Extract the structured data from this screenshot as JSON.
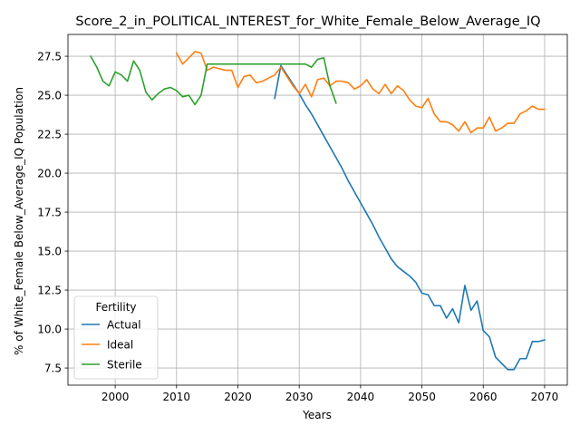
{
  "chart_data": {
    "type": "line",
    "title": "Score_2_in_POLITICAL_INTEREST_for_White_Female_Below_Average_IQ",
    "xlabel": "Years",
    "ylabel": "% of White_Female Below_Average_IQ Population",
    "xlim": [
      1992.3,
      2073.7
    ],
    "ylim": [
      6.4,
      28.9
    ],
    "xticks": [
      2000,
      2010,
      2020,
      2030,
      2040,
      2050,
      2060,
      2070
    ],
    "yticks": [
      7.5,
      10.0,
      12.5,
      15.0,
      17.5,
      20.0,
      22.5,
      25.0,
      27.5
    ],
    "grid": true,
    "legend": {
      "title": "Fertility",
      "position": "lower-left"
    },
    "series": [
      {
        "name": "Actual",
        "color": "#1f77b4",
        "points": [
          [
            2026,
            24.8
          ],
          [
            2027,
            26.9
          ],
          [
            2028,
            26.3
          ],
          [
            2029,
            25.7
          ],
          [
            2030,
            25.1
          ],
          [
            2031,
            24.4
          ],
          [
            2032,
            23.8
          ],
          [
            2033,
            23.1
          ],
          [
            2034,
            22.4
          ],
          [
            2035,
            21.7
          ],
          [
            2036,
            21.0
          ],
          [
            2037,
            20.3
          ],
          [
            2038,
            19.5
          ],
          [
            2039,
            18.8
          ],
          [
            2040,
            18.1
          ],
          [
            2041,
            17.4
          ],
          [
            2042,
            16.7
          ],
          [
            2043,
            15.9
          ],
          [
            2044,
            15.2
          ],
          [
            2045,
            14.5
          ],
          [
            2046,
            14.0
          ],
          [
            2047,
            13.7
          ],
          [
            2048,
            13.4
          ],
          [
            2049,
            13.0
          ],
          [
            2050,
            12.3
          ],
          [
            2051,
            12.2
          ],
          [
            2052,
            11.5
          ],
          [
            2053,
            11.5
          ],
          [
            2054,
            10.7
          ],
          [
            2055,
            11.3
          ],
          [
            2056,
            10.4
          ],
          [
            2057,
            12.8
          ],
          [
            2058,
            11.2
          ],
          [
            2059,
            11.8
          ],
          [
            2060,
            9.9
          ],
          [
            2061,
            9.5
          ],
          [
            2062,
            8.2
          ],
          [
            2063,
            7.8
          ],
          [
            2064,
            7.4
          ],
          [
            2065,
            7.4
          ],
          [
            2066,
            8.1
          ],
          [
            2067,
            8.1
          ],
          [
            2068,
            9.2
          ],
          [
            2069,
            9.2
          ],
          [
            2070,
            9.3
          ]
        ]
      },
      {
        "name": "Ideal",
        "color": "#ff7f0e",
        "points": [
          [
            2010,
            27.7
          ],
          [
            2011,
            27.0
          ],
          [
            2012,
            27.4
          ],
          [
            2013,
            27.8
          ],
          [
            2014,
            27.7
          ],
          [
            2015,
            26.6
          ],
          [
            2016,
            26.8
          ],
          [
            2017,
            26.7
          ],
          [
            2018,
            26.6
          ],
          [
            2019,
            26.6
          ],
          [
            2020,
            25.5
          ],
          [
            2021,
            26.2
          ],
          [
            2022,
            26.3
          ],
          [
            2023,
            25.8
          ],
          [
            2024,
            25.9
          ],
          [
            2025,
            26.1
          ],
          [
            2026,
            26.3
          ],
          [
            2027,
            26.8
          ],
          [
            2028,
            26.2
          ],
          [
            2029,
            25.6
          ],
          [
            2030,
            25.1
          ],
          [
            2031,
            25.7
          ],
          [
            2032,
            24.9
          ],
          [
            2033,
            26.0
          ],
          [
            2034,
            26.1
          ],
          [
            2035,
            25.6
          ],
          [
            2036,
            25.9
          ],
          [
            2037,
            25.9
          ],
          [
            2038,
            25.8
          ],
          [
            2039,
            25.4
          ],
          [
            2040,
            25.6
          ],
          [
            2041,
            26.0
          ],
          [
            2042,
            25.4
          ],
          [
            2043,
            25.1
          ],
          [
            2044,
            25.7
          ],
          [
            2045,
            25.1
          ],
          [
            2046,
            25.6
          ],
          [
            2047,
            25.3
          ],
          [
            2048,
            24.7
          ],
          [
            2049,
            24.3
          ],
          [
            2050,
            24.2
          ],
          [
            2051,
            24.8
          ],
          [
            2052,
            23.8
          ],
          [
            2053,
            23.3
          ],
          [
            2054,
            23.3
          ],
          [
            2055,
            23.1
          ],
          [
            2056,
            22.7
          ],
          [
            2057,
            23.3
          ],
          [
            2058,
            22.6
          ],
          [
            2059,
            22.9
          ],
          [
            2060,
            22.9
          ],
          [
            2061,
            23.6
          ],
          [
            2062,
            22.7
          ],
          [
            2063,
            22.9
          ],
          [
            2064,
            23.2
          ],
          [
            2065,
            23.2
          ],
          [
            2066,
            23.8
          ],
          [
            2067,
            24.0
          ],
          [
            2068,
            24.3
          ],
          [
            2069,
            24.1
          ],
          [
            2070,
            24.1
          ]
        ]
      },
      {
        "name": "Sterile",
        "color": "#2ca02c",
        "points": [
          [
            1996,
            27.5
          ],
          [
            1997,
            26.8
          ],
          [
            1998,
            25.9
          ],
          [
            1999,
            25.6
          ],
          [
            2000,
            26.5
          ],
          [
            2001,
            26.3
          ],
          [
            2002,
            25.9
          ],
          [
            2003,
            27.2
          ],
          [
            2004,
            26.6
          ],
          [
            2005,
            25.2
          ],
          [
            2006,
            24.7
          ],
          [
            2007,
            25.1
          ],
          [
            2008,
            25.4
          ],
          [
            2009,
            25.5
          ],
          [
            2010,
            25.3
          ],
          [
            2011,
            24.9
          ],
          [
            2012,
            25.0
          ],
          [
            2013,
            24.4
          ],
          [
            2014,
            25.0
          ],
          [
            2015,
            27.0
          ],
          [
            2016,
            27.0
          ],
          [
            2017,
            27.0
          ],
          [
            2018,
            27.0
          ],
          [
            2019,
            27.0
          ],
          [
            2020,
            27.0
          ],
          [
            2021,
            27.0
          ],
          [
            2022,
            27.0
          ],
          [
            2023,
            27.0
          ],
          [
            2024,
            27.0
          ],
          [
            2025,
            27.0
          ],
          [
            2026,
            27.0
          ],
          [
            2027,
            27.0
          ],
          [
            2028,
            27.0
          ],
          [
            2029,
            27.0
          ],
          [
            2030,
            27.0
          ],
          [
            2031,
            27.0
          ],
          [
            2032,
            26.8
          ],
          [
            2033,
            27.3
          ],
          [
            2034,
            27.4
          ],
          [
            2035,
            25.6
          ],
          [
            2036,
            24.5
          ]
        ]
      }
    ]
  }
}
